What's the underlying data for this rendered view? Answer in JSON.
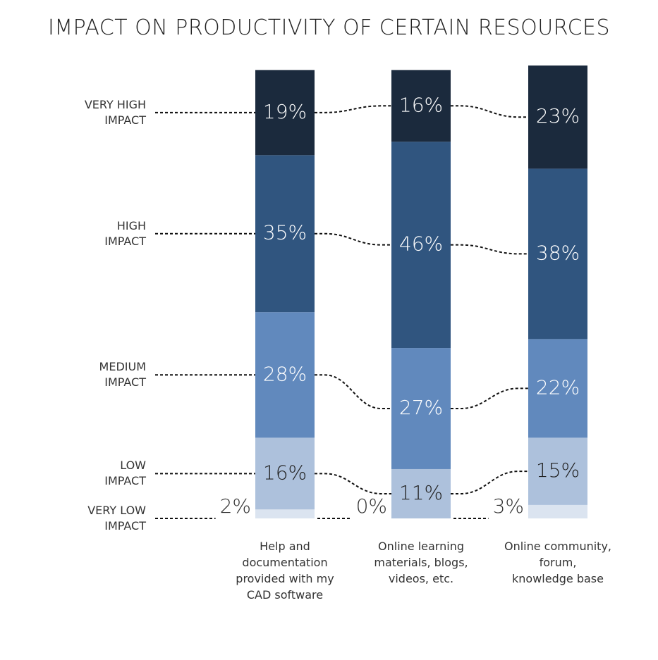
{
  "chart_data": {
    "type": "stacked-bar",
    "title": "IMPACT ON PRODUCTIVITY OF CERTAIN RESOURCES",
    "categories": [
      "Help and\ndocumentation\nprovided with my\nCAD software",
      "Online learning\nmaterials, blogs,\nvideos, etc.",
      "Online community,\nforum,\nknowledge base"
    ],
    "series": [
      {
        "name": "VERY LOW\nIMPACT",
        "color": "#dbe4f0",
        "values": [
          2,
          0,
          3
        ],
        "value_labels": [
          "2%",
          "0%",
          "3%"
        ]
      },
      {
        "name": "LOW\nIMPACT",
        "color": "#adc1dc",
        "values": [
          16,
          11,
          15
        ],
        "value_labels": [
          "16%",
          "11%",
          "15%"
        ]
      },
      {
        "name": "MEDIUM\nIMPACT",
        "color": "#6189bd",
        "values": [
          28,
          27,
          22
        ],
        "value_labels": [
          "28%",
          "27%",
          "22%"
        ]
      },
      {
        "name": "HIGH\nIMPACT",
        "color": "#30557f",
        "values": [
          35,
          46,
          38
        ],
        "value_labels": [
          "35%",
          "46%",
          "38%"
        ]
      },
      {
        "name": "VERY HIGH\nIMPACT",
        "color": "#1b2a3d",
        "values": [
          19,
          16,
          23
        ],
        "value_labels": [
          "19%",
          "16%",
          "23%"
        ]
      }
    ]
  }
}
